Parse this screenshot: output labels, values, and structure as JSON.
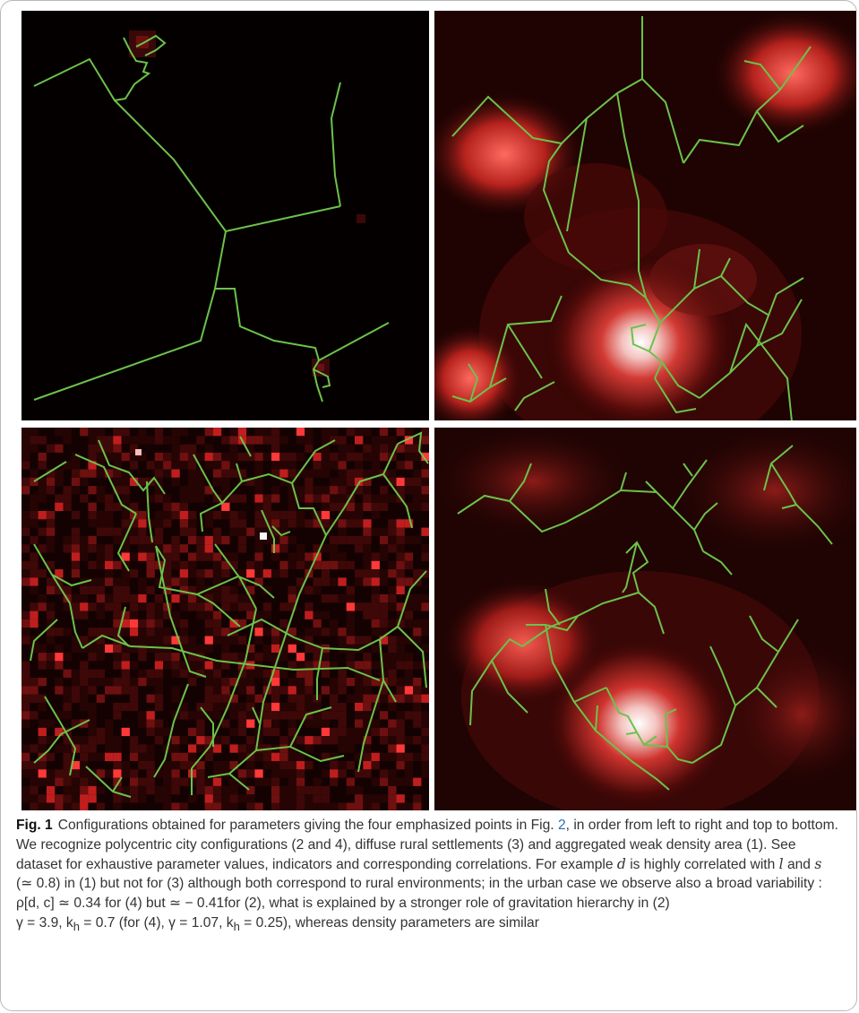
{
  "figure": {
    "label": "Fig. 1",
    "caption_part1": "Configurations obtained for parameters giving the four emphasized points in Fig. ",
    "caption_ref": "2",
    "caption_part2": ", in order from left to right and top to bottom. We recognize polycentric city configurations (2 and 4), diffuse rural settlements (3) and aggregated weak density area (1). See dataset for exhaustive parameter values, indicators and corresponding correlations. For example ",
    "caption_line5a": " is highly correlated with ",
    "caption_line5b": " and ",
    "caption_line5c": " (≃ 0.8) in (1) but not for (3) although both correspond to rural environments; in the urban case we observe also a broad variability : ",
    "caption_rho": "ρ[d, c] ≃ 0.34 for (4) but ≃ − 0.41for (2), what is explained by a stronger role of gravitation hierarchy in (2)",
    "caption_gamma": "γ = 3.9, k",
    "caption_gamma_sub": "h",
    "caption_gamma_tail": " = 0.7 (for (4), γ = 1.07, k",
    "caption_gamma_sub2": "h",
    "caption_gamma_end": " = 0.25), whereas density parameters are similar",
    "var_d": "d",
    "var_l": "l",
    "var_s": "s"
  },
  "colors": {
    "network": "#6cc24a",
    "density_low": "#000000",
    "density_mid": "#e03030",
    "density_high": "#ffffff"
  }
}
